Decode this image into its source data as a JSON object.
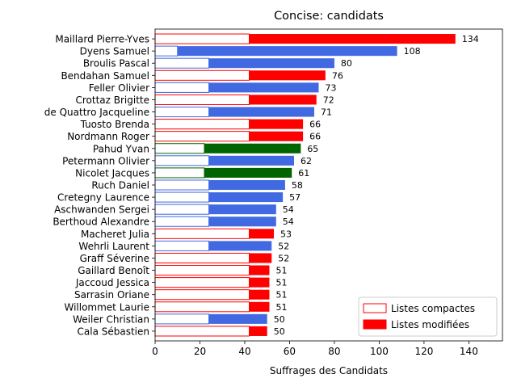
{
  "chart_data": {
    "type": "bar",
    "orientation": "horizontal",
    "stacked": true,
    "title": "Concise: candidats",
    "xlabel": "Suffrages des Candidats",
    "ylabel": "",
    "xlim": [
      0,
      155
    ],
    "xticks": [
      0,
      20,
      40,
      60,
      80,
      100,
      120,
      140
    ],
    "grid": false,
    "legend_position": "lower-right",
    "legend": [
      {
        "label": "Listes compactes",
        "style": "outline",
        "color": "#ff0000"
      },
      {
        "label": "Listes modifiées",
        "style": "filled",
        "color": "#ff0000"
      }
    ],
    "party_colors": {
      "red": "#ff0000",
      "blue": "#4169e1",
      "green": "#006400"
    },
    "categories": [
      "Maillard Pierre-Yves",
      "Dyens Samuel",
      "Broulis Pascal",
      "Bendahan Samuel",
      "Feller Olivier",
      "Crottaz Brigitte",
      "de Quattro Jacqueline",
      "Tuosto Brenda",
      "Nordmann Roger",
      "Pahud Yvan",
      "Petermann Olivier",
      "Nicolet Jacques",
      "Ruch Daniel",
      "Cretegny Laurence",
      "Aschwanden Sergei",
      "Berthoud Alexandre",
      "Macheret Julia",
      "Wehrli Laurent",
      "Graff Séverine",
      "Gaillard Benoît",
      "Jaccoud Jessica",
      "Sarrasin Oriane",
      "Willommet Laurie",
      "Weiler Christian",
      "Cala Sébastien"
    ],
    "party": [
      "red",
      "blue",
      "blue",
      "red",
      "blue",
      "red",
      "blue",
      "red",
      "red",
      "green",
      "blue",
      "green",
      "blue",
      "blue",
      "blue",
      "blue",
      "red",
      "blue",
      "red",
      "red",
      "red",
      "red",
      "red",
      "blue",
      "red"
    ],
    "series": [
      {
        "name": "Listes compactes",
        "values": [
          42,
          10,
          24,
          42,
          24,
          42,
          24,
          42,
          42,
          22,
          24,
          22,
          24,
          24,
          24,
          24,
          42,
          24,
          42,
          42,
          42,
          42,
          42,
          24,
          42
        ]
      },
      {
        "name": "Listes modifiées",
        "values": [
          92,
          98,
          56,
          34,
          49,
          30,
          47,
          24,
          24,
          43,
          38,
          39,
          34,
          33,
          30,
          30,
          11,
          28,
          10,
          9,
          9,
          9,
          9,
          26,
          8
        ]
      }
    ],
    "totals": [
      "134",
      "108",
      "80",
      "76",
      "73",
      "72",
      "71",
      "66",
      "66",
      "65",
      "62",
      "61",
      "58",
      "57",
      "54",
      "54",
      "53",
      "52",
      "52",
      "51",
      "51",
      "51",
      "51",
      "50",
      "50"
    ]
  }
}
